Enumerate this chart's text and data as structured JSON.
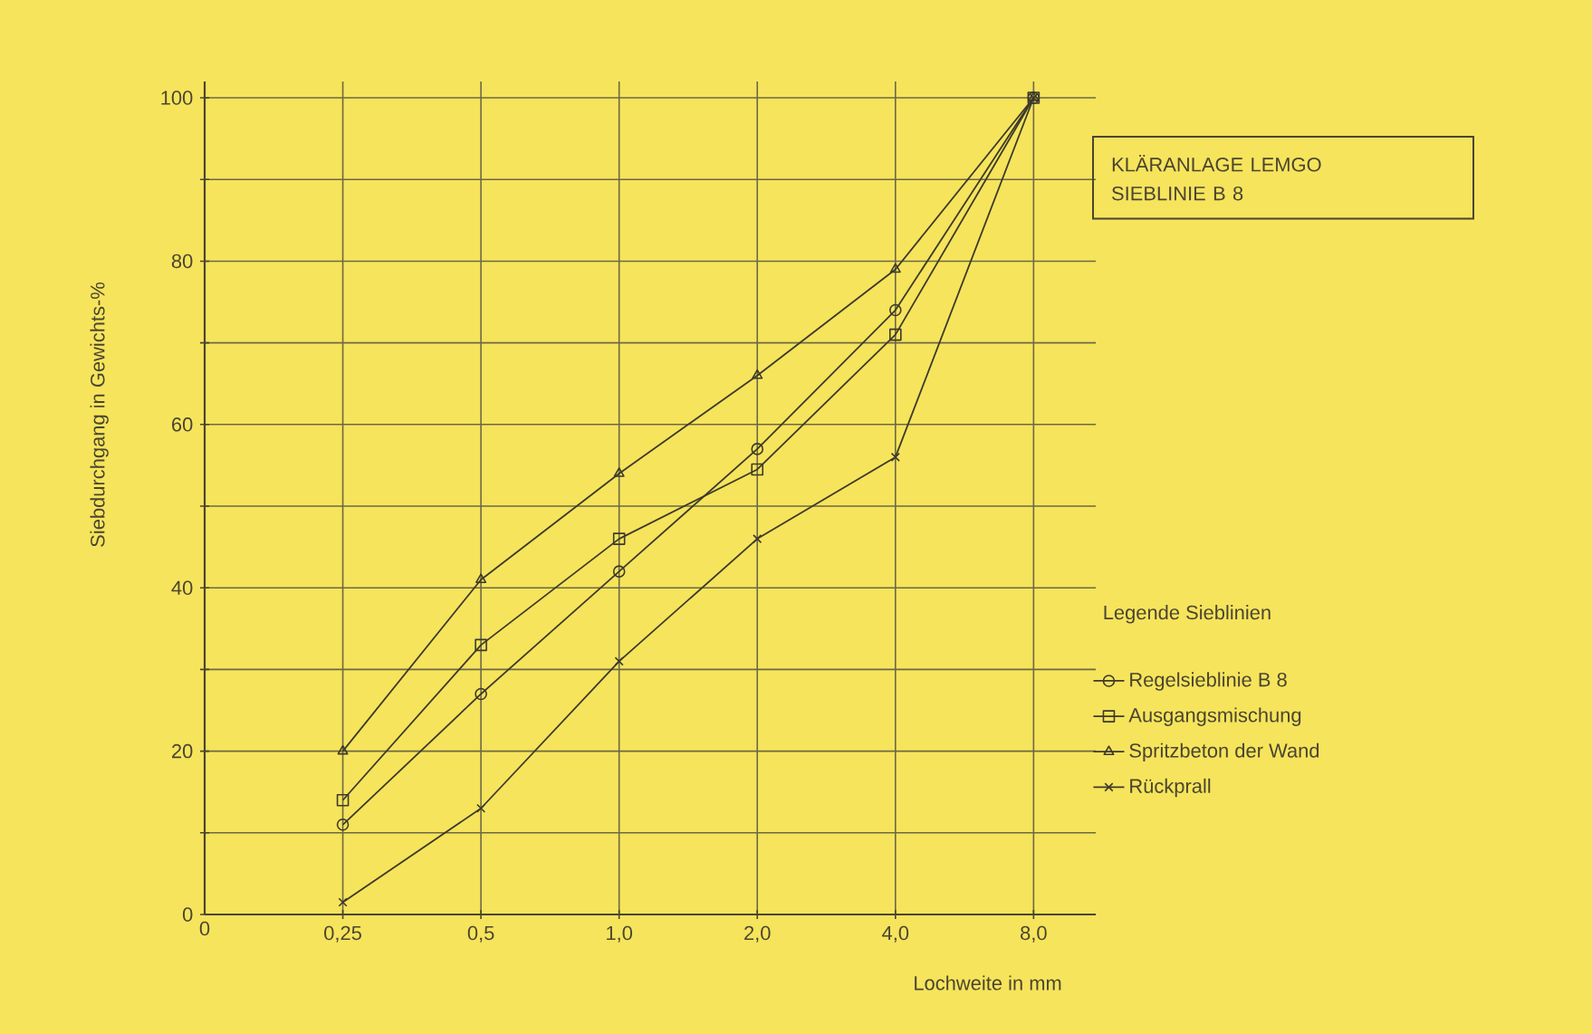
{
  "chart_data": {
    "type": "line",
    "xlabel": "Lochweite in mm",
    "ylabel": "Siebdurchgang in Gewichts-%",
    "legend_title": "Legende Sieblinien",
    "legend": "right",
    "grid": true,
    "line_style": "solid",
    "annotations": [
      "KLÄRANLAGE LEMGO",
      "SIEBLINIE B 8"
    ],
    "categories": [
      "0",
      "0,25",
      "0,5",
      "1,0",
      "2,0",
      "4,0",
      "8,0"
    ],
    "ylim": [
      0,
      102
    ],
    "yticks": [
      0,
      {
        "value": 10,
        "label": null
      },
      20,
      {
        "value": 30,
        "label": null
      },
      40,
      {
        "value": 50,
        "label": null
      },
      60,
      {
        "value": 70,
        "label": null
      },
      80,
      {
        "value": 90,
        "label": null
      },
      100
    ],
    "series": [
      {
        "name": "Regelsieblinie B 8",
        "color": "#3d3a2a",
        "marker": "circle",
        "values": [
          null,
          11,
          27,
          42,
          57,
          74,
          100
        ]
      },
      {
        "name": "Ausgangsmischung",
        "color": "#3d3a2a",
        "marker": "square",
        "values": [
          null,
          14,
          33,
          46,
          54.5,
          71,
          100
        ]
      },
      {
        "name": "Spritzbeton der Wand",
        "color": "#3d3a2a",
        "marker": "triangle",
        "values": [
          null,
          20,
          41,
          54,
          66,
          79,
          100
        ]
      },
      {
        "name": "Rückprall",
        "color": "#3d3a2a",
        "marker": "cross",
        "values": [
          null,
          1.5,
          13,
          31,
          46,
          56,
          100
        ]
      }
    ]
  }
}
